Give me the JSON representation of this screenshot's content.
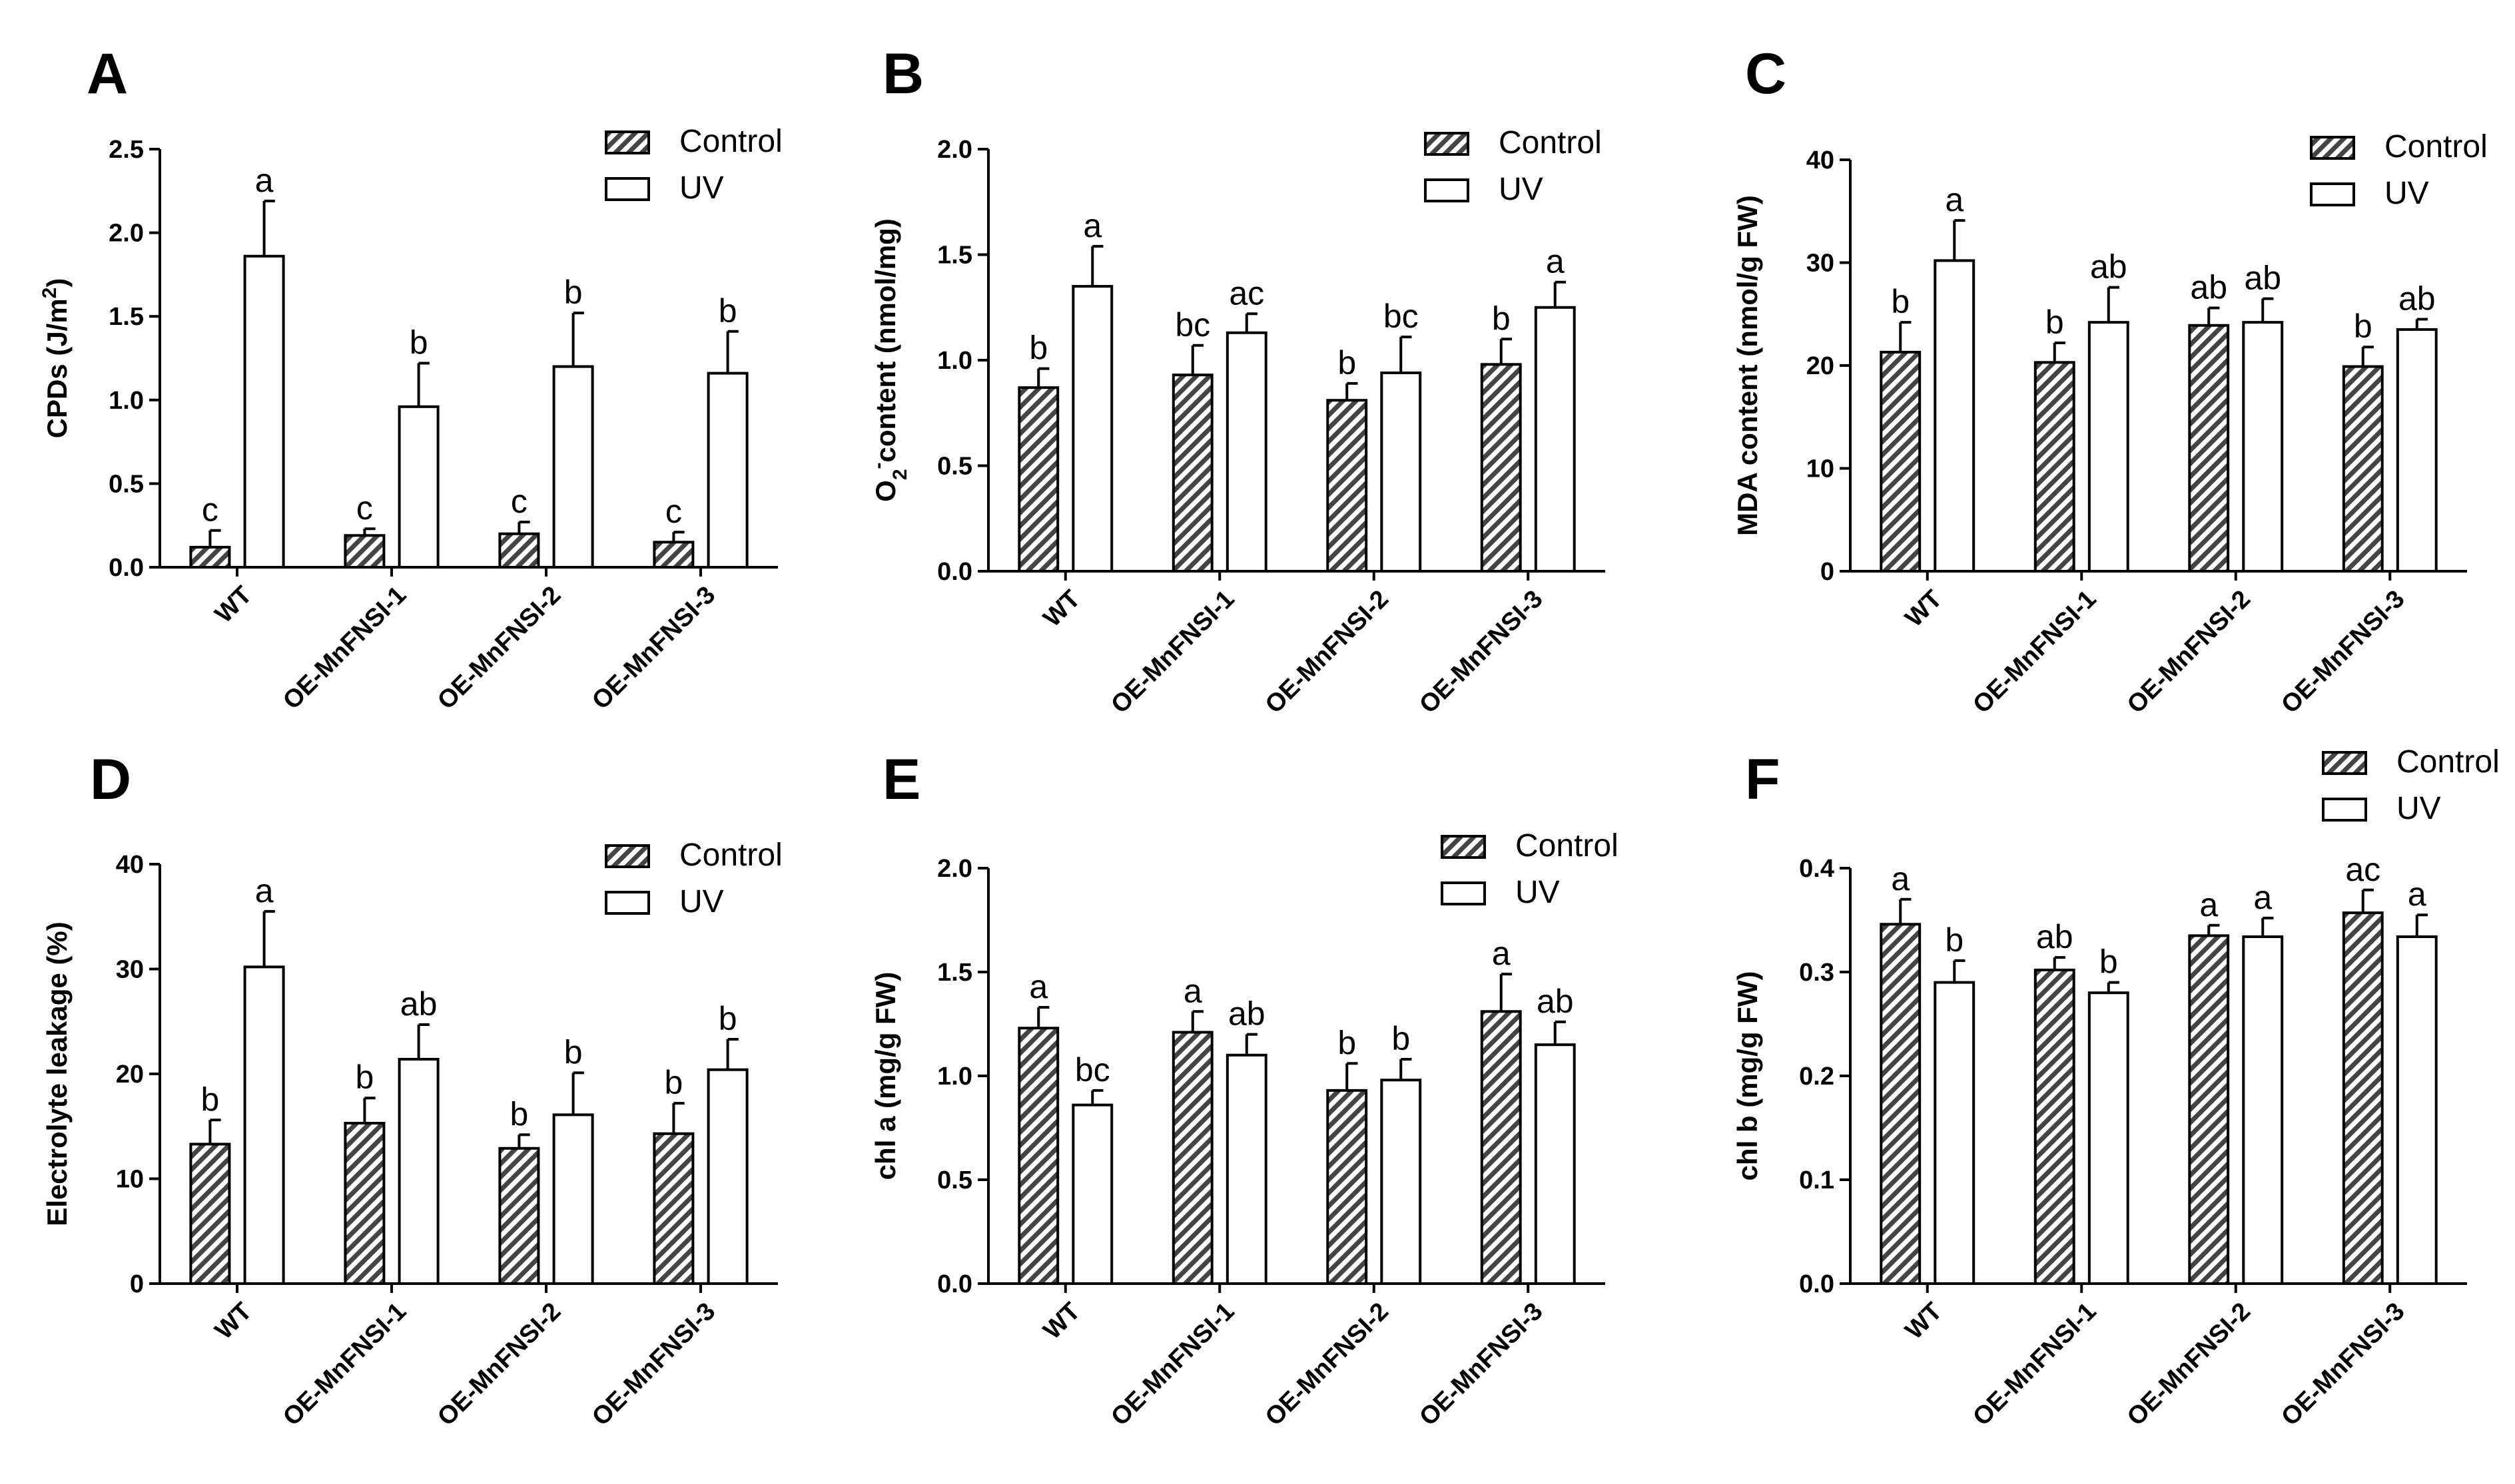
{
  "colors": {
    "ink": "#000000",
    "paper": "#ffffff",
    "control_fill": "hatched",
    "uv_fill": "#ffffff"
  },
  "legend": {
    "control": "Control",
    "uv": "UV"
  },
  "chart_data": [
    {
      "panel": "A",
      "type": "bar",
      "ylabel": "CPDs  (J/m²)",
      "ylabel_main": "CPDs  (J/m",
      "ylabel_sup": "2",
      "ylabel_end": ")",
      "ylim": [
        0,
        2.5
      ],
      "yticks": [
        "0.0",
        "0.5",
        "1.0",
        "1.5",
        "2.0",
        "2.5"
      ],
      "categories": [
        "WT",
        "OE-MnFNSI-1",
        "OE-MnFNSI-2",
        "OE-MnFNSI-3"
      ],
      "series": [
        {
          "name": "Control",
          "values": [
            0.12,
            0.19,
            0.2,
            0.15
          ],
          "errors": [
            0.1,
            0.04,
            0.07,
            0.06
          ],
          "labels": [
            "c",
            "c",
            "c",
            "c"
          ]
        },
        {
          "name": "UV",
          "values": [
            1.86,
            0.96,
            1.2,
            1.16
          ],
          "errors": [
            0.33,
            0.26,
            0.32,
            0.25
          ],
          "labels": [
            "a",
            "b",
            "b",
            "b"
          ]
        }
      ]
    },
    {
      "panel": "B",
      "type": "bar",
      "ylabel": "O2⁻content (nmol/mg)",
      "ylabel_main": "O",
      "ylabel_sub": "2",
      "ylabel_sup": "-",
      "ylabel_end": "content (nmol/mg)",
      "ylim": [
        0,
        2.0
      ],
      "yticks": [
        "0.0",
        "0.5",
        "1.0",
        "1.5",
        "2.0"
      ],
      "categories": [
        "WT",
        "OE-MnFNSI-1",
        "OE-MnFNSI-2",
        "OE-MnFNSI-3"
      ],
      "series": [
        {
          "name": "Control",
          "values": [
            0.87,
            0.93,
            0.81,
            0.98
          ],
          "errors": [
            0.09,
            0.14,
            0.08,
            0.12
          ],
          "labels": [
            "b",
            "bc",
            "b",
            "b"
          ]
        },
        {
          "name": "UV",
          "values": [
            1.35,
            1.13,
            0.94,
            1.25
          ],
          "errors": [
            0.19,
            0.09,
            0.17,
            0.12
          ],
          "labels": [
            "a",
            "ac",
            "bc",
            "a"
          ]
        }
      ]
    },
    {
      "panel": "C",
      "type": "bar",
      "ylabel": "MDA content (nmol/g FW)",
      "ylim": [
        0,
        40
      ],
      "yticks": [
        "0",
        "10",
        "20",
        "30",
        "40"
      ],
      "categories": [
        "WT",
        "OE-MnFNSI-1",
        "OE-MnFNSI-2",
        "OE-MnFNSI-3"
      ],
      "series": [
        {
          "name": "Control",
          "values": [
            21.3,
            20.3,
            23.9,
            19.9
          ],
          "errors": [
            2.9,
            1.9,
            1.7,
            1.9
          ],
          "labels": [
            "b",
            "b",
            "ab",
            "b"
          ]
        },
        {
          "name": "UV",
          "values": [
            30.2,
            24.2,
            24.2,
            23.5
          ],
          "errors": [
            3.9,
            3.4,
            2.3,
            1.0
          ],
          "labels": [
            "a",
            "ab",
            "ab",
            "ab"
          ]
        }
      ]
    },
    {
      "panel": "D",
      "type": "bar",
      "ylabel": "Electrolyte leakage (%)",
      "ylim": [
        0,
        40
      ],
      "yticks": [
        "0",
        "10",
        "20",
        "30",
        "40"
      ],
      "categories": [
        "WT",
        "OE-MnFNSI-1",
        "OE-MnFNSI-2",
        "OE-MnFNSI-3"
      ],
      "series": [
        {
          "name": "Control",
          "values": [
            13.3,
            15.3,
            12.9,
            14.3
          ],
          "errors": [
            2.3,
            2.4,
            1.3,
            2.9
          ],
          "labels": [
            "b",
            "b",
            "b",
            "b"
          ]
        },
        {
          "name": "UV",
          "values": [
            30.2,
            21.4,
            16.1,
            20.4
          ],
          "errors": [
            5.3,
            3.3,
            4.0,
            2.9
          ],
          "labels": [
            "a",
            "ab",
            "b",
            "b"
          ]
        }
      ]
    },
    {
      "panel": "E",
      "type": "bar",
      "ylabel": "chl a (mg/g FW)",
      "ylim": [
        0,
        2.0
      ],
      "yticks": [
        "0.0",
        "0.5",
        "1.0",
        "1.5",
        "2.0"
      ],
      "categories": [
        "WT",
        "OE-MnFNSI-1",
        "OE-MnFNSI-2",
        "OE-MnFNSI-3"
      ],
      "series": [
        {
          "name": "Control",
          "values": [
            1.23,
            1.21,
            0.93,
            1.31
          ],
          "errors": [
            0.1,
            0.1,
            0.13,
            0.18
          ],
          "labels": [
            "a",
            "a",
            "b",
            "a"
          ]
        },
        {
          "name": "UV",
          "values": [
            0.86,
            1.1,
            0.98,
            1.15
          ],
          "errors": [
            0.07,
            0.1,
            0.1,
            0.11
          ],
          "labels": [
            "bc",
            "ab",
            "b",
            "ab"
          ]
        }
      ]
    },
    {
      "panel": "F",
      "type": "bar",
      "ylabel": "chl b (mg/g FW)",
      "ylim": [
        0,
        0.4
      ],
      "yticks": [
        "0.0",
        "0.1",
        "0.2",
        "0.3",
        "0.4"
      ],
      "categories": [
        "WT",
        "OE-MnFNSI-1",
        "OE-MnFNSI-2",
        "OE-MnFNSI-3"
      ],
      "series": [
        {
          "name": "Control",
          "values": [
            0.346,
            0.302,
            0.335,
            0.357
          ],
          "errors": [
            0.024,
            0.012,
            0.01,
            0.022
          ],
          "labels": [
            "a",
            "ab",
            "a",
            "ac"
          ]
        },
        {
          "name": "UV",
          "values": [
            0.29,
            0.28,
            0.334,
            0.334
          ],
          "errors": [
            0.021,
            0.01,
            0.018,
            0.021
          ],
          "labels": [
            "b",
            "b",
            "a",
            "a"
          ]
        }
      ]
    }
  ]
}
